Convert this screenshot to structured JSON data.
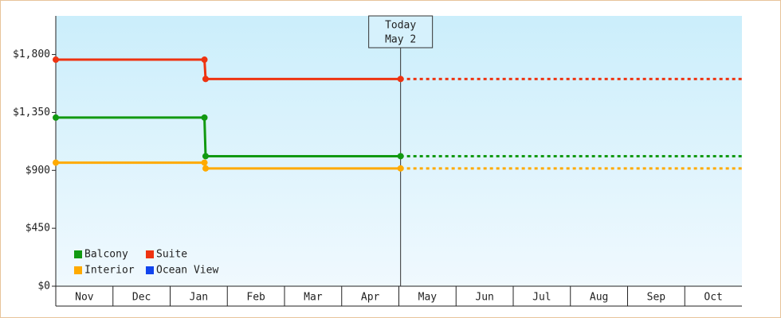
{
  "chart_data": {
    "type": "step-line",
    "categories": [
      "Nov",
      "Dec",
      "Jan",
      "Feb",
      "Mar",
      "Apr",
      "May",
      "Jun",
      "Jul",
      "Aug",
      "Sep",
      "Oct"
    ],
    "xlim": [
      0,
      12
    ],
    "ylim": [
      0,
      2100
    ],
    "yticks": [
      {
        "value": 0,
        "label": "$0"
      },
      {
        "value": 450,
        "label": "$450"
      },
      {
        "value": 900,
        "label": "$900"
      },
      {
        "value": 1350,
        "label": "$1,350"
      },
      {
        "value": 1800,
        "label": "$1,800"
      }
    ],
    "today": {
      "x": 6.03,
      "label": "Today",
      "date": "May 2"
    },
    "series": [
      {
        "name": "Balcony",
        "color": "#119911",
        "x": [
          0,
          2.6,
          2.62,
          6.03
        ],
        "values": [
          1310,
          1310,
          1010,
          1010
        ]
      },
      {
        "name": "Suite",
        "color": "#ee3311",
        "x": [
          0,
          2.6,
          2.62,
          6.03
        ],
        "values": [
          1760,
          1760,
          1610,
          1610
        ]
      },
      {
        "name": "Interior",
        "color": "#ffaa00",
        "x": [
          0,
          2.6,
          2.62,
          6.03
        ],
        "values": [
          960,
          960,
          915,
          915
        ]
      },
      {
        "name": "Ocean View",
        "color": "#1144ee",
        "x": [],
        "values": []
      }
    ],
    "legend": "bottom-left"
  }
}
